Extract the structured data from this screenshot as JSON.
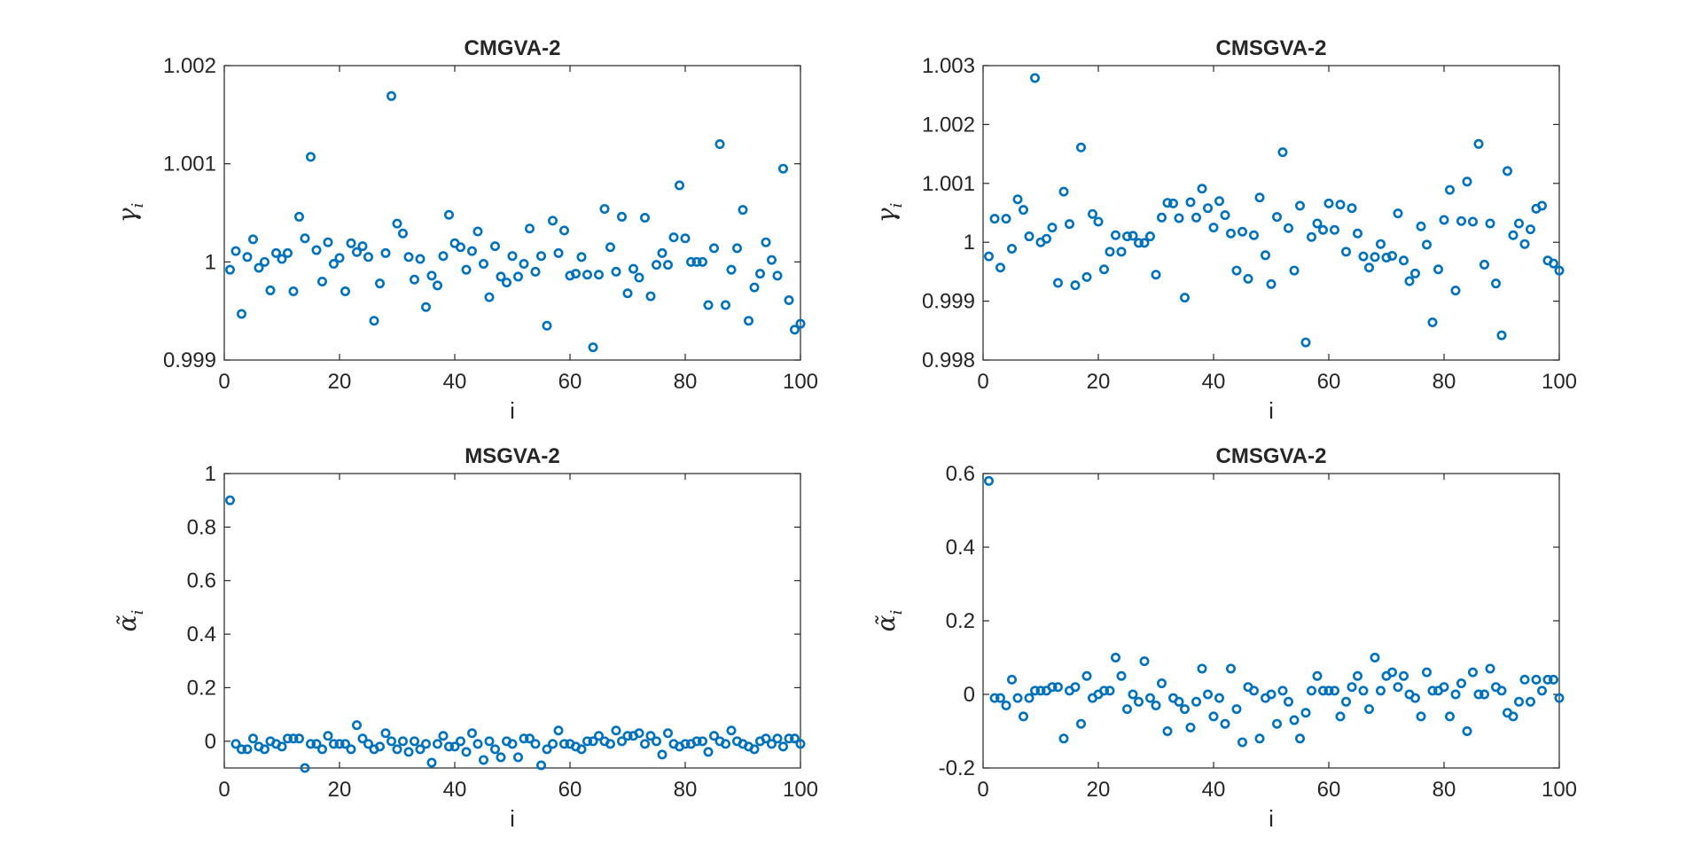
{
  "figure": {
    "background": "#ffffff",
    "marker_color": "#0072BD",
    "axis_color": "#262626"
  },
  "chart_data": [
    {
      "type": "scatter",
      "id": "top-left",
      "title": "CMGVA-2",
      "xlabel": "i",
      "ylabel": "γ",
      "ylabel_sub": "i",
      "xlim": [
        0,
        100
      ],
      "ylim": [
        0.999,
        1.002
      ],
      "xticks": [
        0,
        20,
        40,
        60,
        80,
        100
      ],
      "xtick_labels": [
        "0",
        "20",
        "40",
        "60",
        "80",
        "100"
      ],
      "yticks": [
        0.999,
        1.0,
        1.001,
        1.002
      ],
      "ytick_labels": [
        "0.999",
        "1",
        "1.001",
        "1.002"
      ],
      "x": [
        1,
        2,
        3,
        4,
        5,
        6,
        7,
        8,
        9,
        10,
        11,
        12,
        13,
        14,
        15,
        16,
        17,
        18,
        19,
        20,
        21,
        22,
        23,
        24,
        25,
        26,
        27,
        28,
        29,
        30,
        31,
        32,
        33,
        34,
        35,
        36,
        37,
        38,
        39,
        40,
        41,
        42,
        43,
        44,
        45,
        46,
        47,
        48,
        49,
        50,
        51,
        52,
        53,
        54,
        55,
        56,
        57,
        58,
        59,
        60,
        61,
        62,
        63,
        64,
        65,
        66,
        67,
        68,
        69,
        70,
        71,
        72,
        73,
        74,
        75,
        76,
        77,
        78,
        79,
        80,
        81,
        82,
        83,
        84,
        85,
        86,
        87,
        88,
        89,
        90,
        91,
        92,
        93,
        94,
        95,
        96,
        97,
        98,
        99,
        100
      ],
      "y": [
        0.99992,
        1.00011,
        0.99947,
        1.00005,
        1.00023,
        0.99994,
        1.0,
        0.99971,
        1.00009,
        1.00003,
        1.00009,
        0.9997,
        1.00046,
        1.00024,
        1.00107,
        1.00012,
        0.9998,
        1.0002,
        0.99998,
        1.00004,
        0.9997,
        1.00019,
        1.0001,
        1.00016,
        1.00005,
        0.9994,
        0.99978,
        1.00009,
        1.00169,
        1.00039,
        1.00029,
        1.00005,
        0.99982,
        1.00003,
        0.99954,
        0.99986,
        0.99976,
        1.00006,
        1.00048,
        1.00019,
        1.00015,
        0.99992,
        1.00011,
        1.00031,
        0.99998,
        0.99964,
        1.00016,
        0.99985,
        0.99979,
        1.00006,
        0.99985,
        0.99998,
        1.00034,
        0.9999,
        1.00006,
        0.99935,
        1.00042,
        1.00009,
        1.00032,
        0.99986,
        0.99988,
        1.00005,
        0.99987,
        0.99913,
        0.99987,
        1.00054,
        1.00015,
        0.9999,
        1.00046,
        0.99968,
        0.99993,
        0.99984,
        1.00045,
        0.99965,
        0.99997,
        1.00009,
        0.99997,
        1.00025,
        1.00078,
        1.00024,
        1.0,
        1.0,
        1.0,
        0.99956,
        1.00014,
        1.0012,
        0.99956,
        0.99992,
        1.00014,
        1.00053,
        0.9994,
        0.99974,
        0.99988,
        1.0002,
        1.00002,
        0.99986,
        1.00095,
        0.99961,
        0.99931,
        0.99937
      ]
    },
    {
      "type": "scatter",
      "id": "top-right",
      "title": "CMSGVA-2",
      "xlabel": "i",
      "ylabel": "γ",
      "ylabel_sub": "i",
      "xlim": [
        0,
        100
      ],
      "ylim": [
        0.998,
        1.003
      ],
      "xticks": [
        0,
        20,
        40,
        60,
        80,
        100
      ],
      "xtick_labels": [
        "0",
        "20",
        "40",
        "60",
        "80",
        "100"
      ],
      "yticks": [
        0.998,
        0.999,
        1.0,
        1.001,
        1.002,
        1.003
      ],
      "ytick_labels": [
        "0.998",
        "0.999",
        "1",
        "1.001",
        "1.002",
        "1.003"
      ],
      "x": [
        1,
        2,
        3,
        4,
        5,
        6,
        7,
        8,
        9,
        10,
        11,
        12,
        13,
        14,
        15,
        16,
        17,
        18,
        19,
        20,
        21,
        22,
        23,
        24,
        25,
        26,
        27,
        28,
        29,
        30,
        31,
        32,
        33,
        34,
        35,
        36,
        37,
        38,
        39,
        40,
        41,
        42,
        43,
        44,
        45,
        46,
        47,
        48,
        49,
        50,
        51,
        52,
        53,
        54,
        55,
        56,
        57,
        58,
        59,
        60,
        61,
        62,
        63,
        64,
        65,
        66,
        67,
        68,
        69,
        70,
        71,
        72,
        73,
        74,
        75,
        76,
        77,
        78,
        79,
        80,
        81,
        82,
        83,
        84,
        85,
        86,
        87,
        88,
        89,
        90,
        91,
        92,
        93,
        94,
        95,
        96,
        97,
        98,
        99,
        100
      ],
      "y": [
        0.99976,
        1.0004,
        0.99957,
        1.0004,
        0.99989,
        1.00073,
        1.00055,
        1.0001,
        1.00279,
        1.0,
        1.00006,
        1.00025,
        0.99931,
        1.00086,
        1.00031,
        0.99927,
        1.00161,
        0.99941,
        1.00048,
        1.00035,
        0.99954,
        0.99984,
        1.00012,
        0.99984,
        1.0001,
        1.00011,
        0.99999,
        0.99999,
        1.0001,
        0.99945,
        1.00042,
        1.00067,
        1.00066,
        1.00041,
        0.99906,
        1.00068,
        1.00042,
        1.00091,
        1.00058,
        1.00025,
        1.0007,
        1.00046,
        1.00015,
        0.99952,
        1.00018,
        0.99938,
        1.00012,
        1.00076,
        0.99978,
        0.99929,
        1.00043,
        1.00153,
        1.00024,
        0.99952,
        1.00062,
        0.9983,
        1.00009,
        1.00032,
        1.00021,
        1.00066,
        1.00021,
        1.00064,
        0.99984,
        1.00058,
        1.00015,
        0.99976,
        0.99957,
        0.99975,
        0.99997,
        0.99974,
        0.99977,
        1.00049,
        0.99969,
        0.99934,
        0.99947,
        1.00027,
        0.99996,
        0.99864,
        0.99954,
        1.00038,
        1.00089,
        0.99918,
        1.00036,
        1.00103,
        1.00035,
        1.00167,
        0.99962,
        1.00032,
        0.9993,
        0.99842,
        1.00121,
        1.00012,
        1.00032,
        0.99997,
        1.00022,
        1.00057,
        1.00062,
        0.99969,
        0.99964,
        0.99952
      ]
    },
    {
      "type": "scatter",
      "id": "bottom-left",
      "title": "MSGVA-2",
      "xlabel": "i",
      "ylabel": "α̃",
      "ylabel_sub": "i",
      "xlim": [
        0,
        100
      ],
      "ylim": [
        -0.1,
        1.0
      ],
      "xticks": [
        0,
        20,
        40,
        60,
        80,
        100
      ],
      "xtick_labels": [
        "0",
        "20",
        "40",
        "60",
        "80",
        "100"
      ],
      "yticks": [
        0,
        0.2,
        0.4,
        0.6,
        0.8,
        1
      ],
      "ytick_labels": [
        "0",
        "0.2",
        "0.4",
        "0.6",
        "0.8",
        "1"
      ],
      "x": [
        1,
        2,
        3,
        4,
        5,
        6,
        7,
        8,
        9,
        10,
        11,
        12,
        13,
        14,
        15,
        16,
        17,
        18,
        19,
        20,
        21,
        22,
        23,
        24,
        25,
        26,
        27,
        28,
        29,
        30,
        31,
        32,
        33,
        34,
        35,
        36,
        37,
        38,
        39,
        40,
        41,
        42,
        43,
        44,
        45,
        46,
        47,
        48,
        49,
        50,
        51,
        52,
        53,
        54,
        55,
        56,
        57,
        58,
        59,
        60,
        61,
        62,
        63,
        64,
        65,
        66,
        67,
        68,
        69,
        70,
        71,
        72,
        73,
        74,
        75,
        76,
        77,
        78,
        79,
        80,
        81,
        82,
        83,
        84,
        85,
        86,
        87,
        88,
        89,
        90,
        91,
        92,
        93,
        94,
        95,
        96,
        97,
        98,
        99,
        100
      ],
      "y": [
        0.9,
        -0.01,
        -0.03,
        -0.03,
        0.01,
        -0.02,
        -0.03,
        0.0,
        -0.01,
        -0.02,
        0.01,
        0.01,
        0.01,
        -0.1,
        -0.01,
        -0.01,
        -0.03,
        0.02,
        -0.01,
        -0.01,
        -0.01,
        -0.03,
        0.06,
        0.01,
        -0.01,
        -0.03,
        -0.02,
        0.03,
        0.0,
        -0.03,
        0.0,
        -0.04,
        0.0,
        -0.03,
        -0.01,
        -0.08,
        -0.01,
        0.02,
        -0.02,
        -0.02,
        0.0,
        -0.04,
        0.03,
        -0.01,
        -0.07,
        0.0,
        -0.03,
        -0.06,
        0.0,
        -0.01,
        -0.06,
        0.01,
        0.01,
        -0.01,
        -0.09,
        -0.03,
        -0.01,
        0.04,
        -0.01,
        -0.01,
        -0.02,
        -0.03,
        0.0,
        0.0,
        0.02,
        0.0,
        -0.01,
        0.04,
        0.0,
        0.02,
        0.02,
        0.03,
        -0.01,
        0.02,
        0.0,
        -0.05,
        0.03,
        -0.01,
        -0.02,
        -0.01,
        -0.01,
        0.0,
        0.0,
        -0.04,
        0.02,
        0.0,
        -0.01,
        0.04,
        0.0,
        -0.01,
        -0.02,
        -0.03,
        0.0,
        0.01,
        -0.01,
        0.01,
        -0.02,
        0.01,
        0.01,
        -0.01
      ]
    },
    {
      "type": "scatter",
      "id": "bottom-right",
      "title": "CMSGVA-2",
      "xlabel": "i",
      "ylabel": "α̃",
      "ylabel_sub": "i",
      "xlim": [
        0,
        100
      ],
      "ylim": [
        -0.2,
        0.6
      ],
      "xticks": [
        0,
        20,
        40,
        60,
        80,
        100
      ],
      "xtick_labels": [
        "0",
        "20",
        "40",
        "60",
        "80",
        "100"
      ],
      "yticks": [
        -0.2,
        0.0,
        0.2,
        0.4,
        0.6
      ],
      "ytick_labels": [
        "-0.2",
        "0",
        "0.2",
        "0.4",
        "0.6"
      ],
      "x": [
        1,
        2,
        3,
        4,
        5,
        6,
        7,
        8,
        9,
        10,
        11,
        12,
        13,
        14,
        15,
        16,
        17,
        18,
        19,
        20,
        21,
        22,
        23,
        24,
        25,
        26,
        27,
        28,
        29,
        30,
        31,
        32,
        33,
        34,
        35,
        36,
        37,
        38,
        39,
        40,
        41,
        42,
        43,
        44,
        45,
        46,
        47,
        48,
        49,
        50,
        51,
        52,
        53,
        54,
        55,
        56,
        57,
        58,
        59,
        60,
        61,
        62,
        63,
        64,
        65,
        66,
        67,
        68,
        69,
        70,
        71,
        72,
        73,
        74,
        75,
        76,
        77,
        78,
        79,
        80,
        81,
        82,
        83,
        84,
        85,
        86,
        87,
        88,
        89,
        90,
        91,
        92,
        93,
        94,
        95,
        96,
        97,
        98,
        99,
        100
      ],
      "y": [
        0.58,
        -0.01,
        -0.01,
        -0.03,
        0.04,
        -0.01,
        -0.06,
        -0.01,
        0.01,
        0.01,
        0.01,
        0.02,
        0.02,
        -0.12,
        0.01,
        0.02,
        -0.08,
        0.05,
        -0.01,
        0.0,
        0.01,
        0.01,
        0.1,
        0.05,
        -0.04,
        0.0,
        -0.02,
        0.09,
        -0.01,
        -0.03,
        0.03,
        -0.1,
        -0.01,
        -0.02,
        -0.04,
        -0.09,
        -0.02,
        0.07,
        0.0,
        -0.06,
        -0.01,
        -0.08,
        0.07,
        -0.04,
        -0.13,
        0.02,
        0.01,
        -0.12,
        -0.01,
        0.0,
        -0.08,
        0.01,
        -0.02,
        -0.07,
        -0.12,
        -0.05,
        0.01,
        0.05,
        0.01,
        0.01,
        0.01,
        -0.06,
        -0.02,
        0.02,
        0.05,
        0.01,
        -0.04,
        0.1,
        0.01,
        0.05,
        0.06,
        0.02,
        0.05,
        0.0,
        -0.01,
        -0.06,
        0.06,
        0.01,
        0.01,
        0.02,
        -0.06,
        0.0,
        0.03,
        -0.1,
        0.06,
        0.0,
        0.0,
        0.07,
        0.02,
        0.01,
        -0.05,
        -0.06,
        -0.02,
        0.04,
        -0.02,
        0.04,
        0.01,
        0.04,
        0.04,
        -0.01
      ]
    }
  ]
}
